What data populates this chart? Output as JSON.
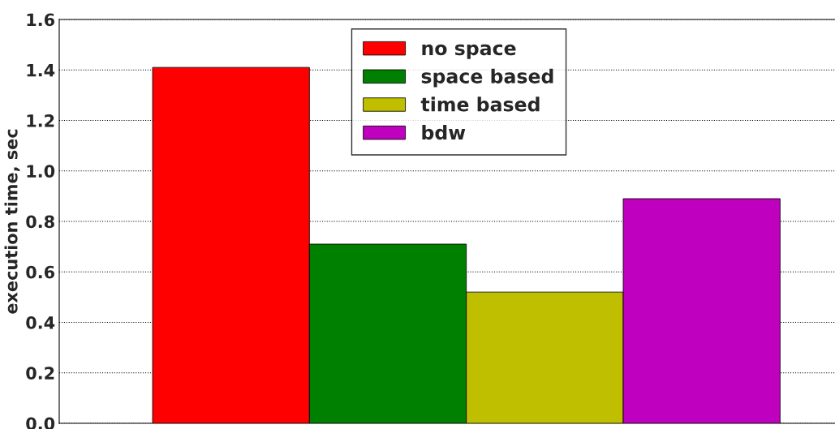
{
  "chart_data": {
    "type": "bar",
    "ylabel": "execution time, sec",
    "categories": [
      null
    ],
    "series": [
      {
        "name": "no space",
        "color": "#ff0000",
        "values": [
          1.41
        ]
      },
      {
        "name": "space based",
        "color": "#008000",
        "values": [
          0.71
        ]
      },
      {
        "name": "time based",
        "color": "#bfbf00",
        "values": [
          0.52
        ]
      },
      {
        "name": "bdw",
        "color": "#bf00bf",
        "values": [
          0.89
        ]
      }
    ],
    "ylim": [
      0,
      1.6
    ],
    "yticks": [
      {
        "value": 0,
        "label": "0.0"
      },
      {
        "value": 0.2,
        "label": "0.2"
      },
      {
        "value": 0.4,
        "label": "0.4"
      },
      {
        "value": 0.6,
        "label": "0.6"
      },
      {
        "value": 0.8,
        "label": "0.8"
      },
      {
        "value": 1.0,
        "label": "1.0"
      },
      {
        "value": 1.2,
        "label": "1.2"
      },
      {
        "value": 1.4,
        "label": "1.4"
      },
      {
        "value": 1.6,
        "label": "1.6"
      }
    ],
    "tick_labels": "y",
    "grid": "y",
    "legend": "top"
  }
}
